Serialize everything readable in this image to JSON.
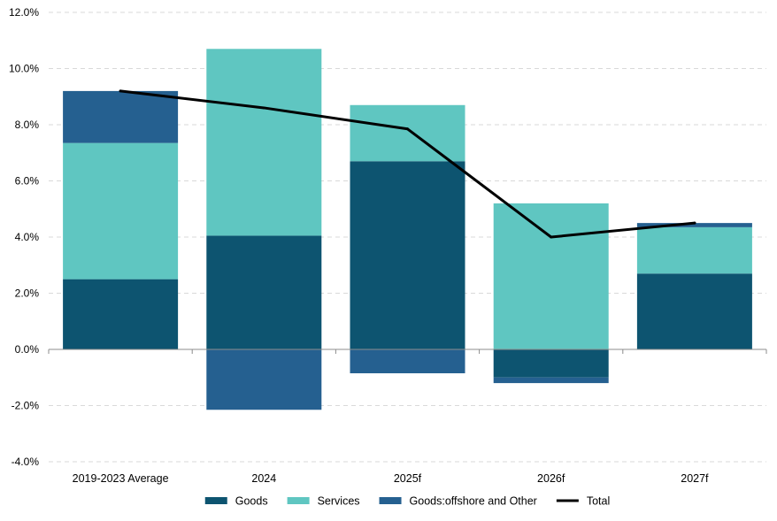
{
  "chart_data": {
    "type": "bar",
    "stacked": true,
    "title": "",
    "xlabel": "",
    "ylabel": "",
    "categories": [
      "2019-2023 Average",
      "2024",
      "2025f",
      "2026f",
      "2027f"
    ],
    "series": [
      {
        "name": "Goods",
        "kind": "bar",
        "color": "#0d5470",
        "values": [
          2.5,
          4.05,
          6.7,
          -1.0,
          2.7
        ]
      },
      {
        "name": "Services",
        "kind": "bar",
        "color": "#5fc6c1",
        "values": [
          4.85,
          6.65,
          2.0,
          5.2,
          1.65
        ]
      },
      {
        "name": "Goods:offshore and Other",
        "kind": "bar",
        "color": "#256090",
        "values": [
          1.85,
          -2.15,
          -0.85,
          -0.2,
          0.15
        ]
      },
      {
        "name": "Total",
        "kind": "line",
        "color": "#000000",
        "values": [
          9.2,
          8.6,
          7.85,
          4.0,
          4.5
        ]
      }
    ],
    "yticks": [
      "12.0%",
      "10.0%",
      "8.0%",
      "6.0%",
      "4.0%",
      "2.0%",
      "0.0%",
      "-2.0%",
      "-4.0%"
    ],
    "ylim": [
      -4,
      12
    ],
    "ytick_step": 2,
    "grid": "horizontal-dashed",
    "legend_position": "bottom"
  }
}
